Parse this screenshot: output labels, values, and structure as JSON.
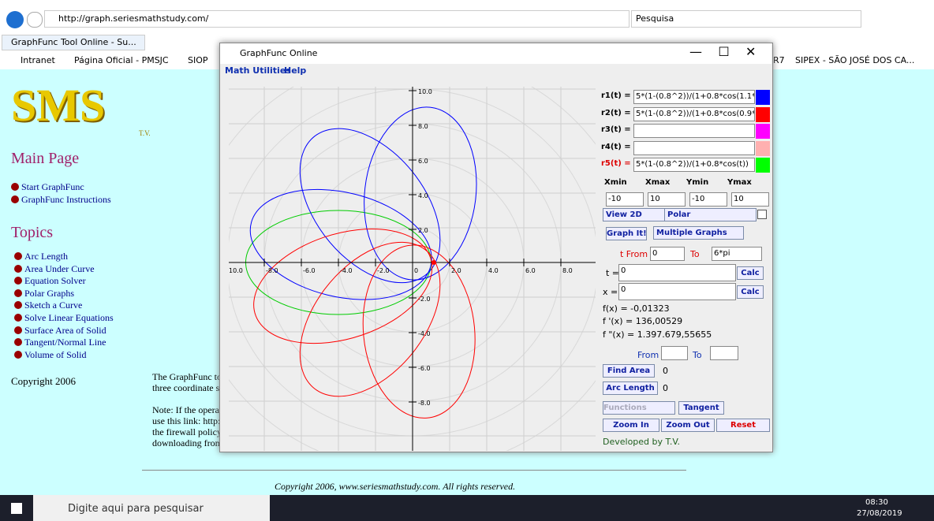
{
  "browser": {
    "url": "http://graph.seriesmathstudy.com/",
    "search": "Pesquisa",
    "tab": "GraphFunc Tool Online - Su...",
    "bookmarks": [
      "Intranet",
      "Página Oficial - PMSJC",
      "SIOP"
    ],
    "bookmarks_right": [
      "R7",
      "SIPEX - SÃO JOSÉ DOS CA..."
    ]
  },
  "site": {
    "logo": "SMS",
    "logo_sub": "T.V.",
    "main_page": "Main Page",
    "main_links": [
      "Start GraphFunc",
      "GraphFunc Instructions"
    ],
    "topics": "Topics",
    "topic_links": [
      "Arc Length",
      "Area Under Curve",
      "Equation Solver",
      "Polar Graphs",
      "Sketch a Curve",
      "Solve Linear Equations",
      "Surface Area of Solid",
      "Tangent/Normal Line",
      "Volume of Solid"
    ],
    "copyright": "Copyright 2006",
    "body": [
      "The GraphFunc to",
      "three coordinate s",
      "Note: If the opera",
      "use this link: http:",
      "the firewall policy",
      "downloading from here."
    ],
    "footer": "Copyright 2006, www.seriesmathstudy.com. All rights reserved."
  },
  "app": {
    "title": "GraphFunc Online",
    "menu": [
      "Math Utilities",
      "Help"
    ],
    "x_ticks": [
      "10.0",
      "-8.0",
      "-6.0",
      "-4.0",
      "-2.0",
      "0",
      "2.0",
      "4.0",
      "6.0",
      "8.0",
      "10"
    ],
    "y_ticks": [
      "10.0",
      "8.0",
      "6.0",
      "4.0",
      "2.0",
      "-2.0",
      "-4.0",
      "-6.0",
      "-8.0"
    ],
    "functions": [
      {
        "label": "r1(t) =",
        "expr": "5*(1-(0.8^2))/(1+0.8*cos(1.1*t))"
      },
      {
        "label": "r2(t) =",
        "expr": "5*(1-(0.8^2))/(1+0.8*cos(0.9*t))"
      },
      {
        "label": "r3(t) ="
      },
      {
        "label": "r4(t) ="
      },
      {
        "label": "r5(t) =",
        "expr": "5*(1-(0.8^2))/(1+0.8*cos(t))"
      }
    ],
    "range_headers": [
      "Xmin",
      "Xmax",
      "Ymin",
      "Ymax"
    ],
    "range_values": [
      "-10",
      "10",
      "-10",
      "10"
    ],
    "view": "View 2D",
    "mode": "Polar",
    "graph_button": "Graph It!",
    "graph_mode": "Multiple Graphs",
    "t_from_label": "t From",
    "t_from": "0",
    "t_to_label": "To",
    "t_to": "6*pi",
    "t_label": "t =",
    "t_value": "0",
    "x_label": "x =",
    "x_value": "0",
    "calc": "Calc",
    "fx": "f(x) =  -0,01323",
    "f1": "f '(x) = 136,00529",
    "f2": "f \"(x) = 1.397.679,55655",
    "from": "From",
    "to": "To",
    "find_area": "Find Area",
    "area": "0",
    "arc_length": "Arc Length",
    "arc": "0",
    "functions_dd": "Functions",
    "tangent": "Tangent",
    "zoom_in": "Zoom In",
    "zoom_out": "Zoom Out",
    "reset": "Reset",
    "developer": "Developed by T.V."
  },
  "taskbar": {
    "search": "Digite aqui para pesquisar",
    "time": "08:30",
    "date": "27/08/2019"
  }
}
